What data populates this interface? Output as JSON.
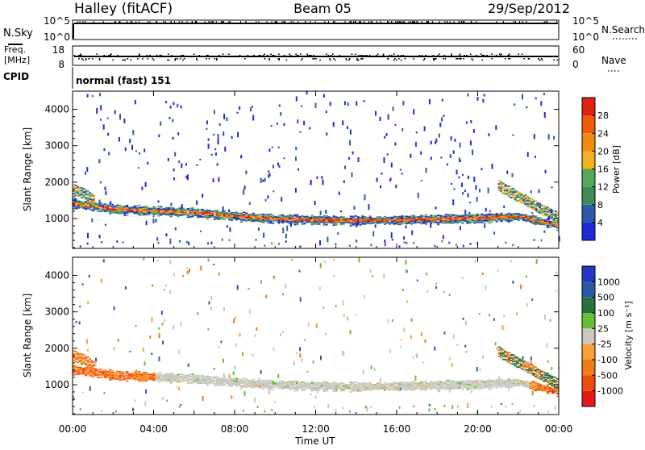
{
  "header": {
    "title_left": "Halley (fitACF)",
    "title_center": "Beam 05",
    "title_right": "29/Sep/2012"
  },
  "top_panels": {
    "nsky_label": "N.Sky",
    "nsky_ticks": [
      "10^5",
      "10^0"
    ],
    "nsearch_label": "N.Search",
    "nsearch_ticks": [
      "10^5",
      "10^0"
    ],
    "freq_label_1": "Freq.",
    "freq_label_2": "[MHz]",
    "freq_ticks": [
      "18",
      "8"
    ],
    "nave_label": "Nave",
    "nave_ticks": [
      "60",
      "0"
    ],
    "cpid_label": "CPID",
    "cpid_text": "normal (fast) 151"
  },
  "colors": {
    "power": [
      "#1f2bd6",
      "#2a5aa8",
      "#3f8a5a",
      "#55a855",
      "#f0b020",
      "#f08c10",
      "#f05a08",
      "#e02010"
    ],
    "velocity": [
      "#e81818",
      "#f04a10",
      "#f07a18",
      "#f8a030",
      "#c8c8c0",
      "#64c034",
      "#2a7040",
      "#2a58a8",
      "#2436c8"
    ]
  },
  "chart_data": [
    {
      "type": "heatmap",
      "title": "",
      "xlabel": "",
      "ylabel": "Slant Range [km]",
      "x_unit": "hours UT",
      "xlim": [
        0,
        24
      ],
      "ylim": [
        180,
        4500
      ],
      "yticks": [
        "1000",
        "2000",
        "3000",
        "4000"
      ],
      "colorbar": {
        "label": "Power [dB]",
        "ticks": [
          "28",
          "24",
          "20",
          "16",
          "12",
          "8",
          "4"
        ],
        "range": [
          0,
          32
        ]
      },
      "main_echo_band_km": [
        [
          0,
          1400
        ],
        [
          2,
          1250
        ],
        [
          4,
          1200
        ],
        [
          6,
          1150
        ],
        [
          8,
          1050
        ],
        [
          10,
          980
        ],
        [
          12,
          950
        ],
        [
          14,
          930
        ],
        [
          16,
          950
        ],
        [
          18,
          970
        ],
        [
          20,
          1000
        ],
        [
          22,
          1050
        ],
        [
          23.5,
          850
        ],
        [
          24,
          800
        ]
      ],
      "early_band_km": [
        [
          0,
          1800
        ],
        [
          0.5,
          1700
        ],
        [
          1,
          1500
        ]
      ],
      "late_band_km": [
        [
          21,
          1900
        ],
        [
          22,
          1600
        ],
        [
          23,
          1300
        ],
        [
          24,
          1000
        ]
      ]
    },
    {
      "type": "heatmap",
      "title": "",
      "xlabel": "Time UT",
      "ylabel": "Slant Range [km]",
      "x_unit": "hours UT",
      "xticks": [
        "00:00",
        "04:00",
        "08:00",
        "12:00",
        "16:00",
        "20:00",
        "00:00"
      ],
      "xlim": [
        0,
        24
      ],
      "ylim": [
        180,
        4500
      ],
      "yticks": [
        "1000",
        "2000",
        "3000",
        "4000"
      ],
      "colorbar": {
        "label": "Velocity [m s⁻¹]",
        "ticks": [
          "1000",
          "500",
          "100",
          "25",
          "-25",
          "-100",
          "-500",
          "-1000"
        ]
      }
    }
  ]
}
